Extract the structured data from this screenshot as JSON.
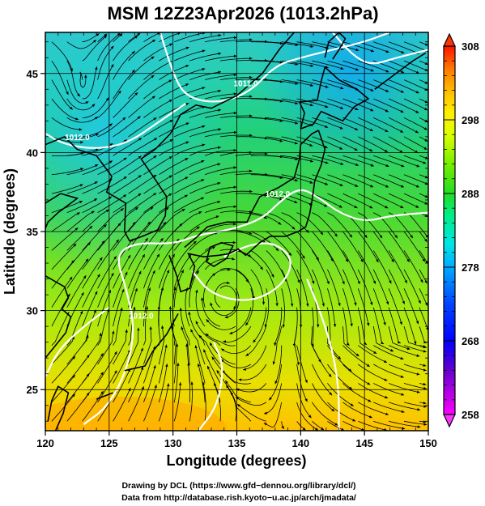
{
  "title": "MSM 12Z23Apr2026 (1013.2hPa)",
  "xlabel": "Longitude (degrees)",
  "ylabel": "Latitude  (degrees)",
  "x_ticks": [
    120,
    125,
    130,
    135,
    140,
    145,
    150
  ],
  "y_ticks": [
    25,
    30,
    35,
    40,
    45
  ],
  "x_range": [
    120,
    150
  ],
  "y_range": [
    22.4,
    47.6
  ],
  "colorbar": {
    "ticks": [
      258,
      268,
      278,
      288,
      298,
      308
    ],
    "range": [
      258,
      308
    ],
    "colors": [
      "#ff00ff",
      "#3300cc",
      "#0000ff",
      "#0066ff",
      "#00ccff",
      "#00ffcc",
      "#00ff66",
      "#22dd22",
      "#66ee00",
      "#ccff00",
      "#ffff00",
      "#ffcc00",
      "#ff9900",
      "#ff5500",
      "#ff0000"
    ]
  },
  "contour_labels": [
    {
      "text": "1012.0",
      "lon": 122.5,
      "lat": 40.8
    },
    {
      "text": "1011.0",
      "lon": 135.7,
      "lat": 44.2
    },
    {
      "text": "1012.0",
      "lon": 127.5,
      "lat": 29.5
    },
    {
      "text": "1012.0",
      "lon": 138.2,
      "lat": 37.2
    }
  ],
  "credits": {
    "line1": "Drawing by DCL (https://www.gfd−dennou.org/library/dcl/)",
    "line2": "Data from http://database.rish.kyoto−u.ac.jp/arch/jmadata/"
  }
}
